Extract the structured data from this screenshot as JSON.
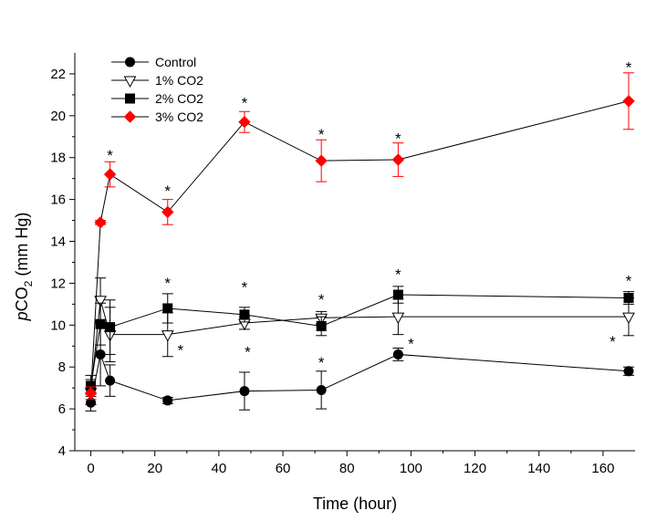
{
  "chart_data": {
    "type": "line",
    "xlabel": "Time (hour)",
    "ylabel": "pCO2 (mm Hg)",
    "ylabel_parts": {
      "italic": "p",
      "main": "CO",
      "sub": "2",
      "rest": " (mm Hg)"
    },
    "xlim": [
      -5,
      170
    ],
    "ylim": [
      4,
      23
    ],
    "xticks": [
      0,
      20,
      40,
      60,
      80,
      100,
      120,
      140,
      160
    ],
    "yticks": [
      4,
      6,
      8,
      10,
      12,
      14,
      16,
      18,
      20,
      22
    ],
    "grid": false,
    "legend_position": "top-left",
    "significance_marker": "*",
    "series": [
      {
        "name": "Control",
        "marker": "circle-filled",
        "color": "#000000",
        "x": [
          0,
          3,
          6,
          24,
          48,
          72,
          96,
          168
        ],
        "y": [
          6.3,
          8.6,
          7.35,
          6.4,
          6.85,
          6.9,
          8.6,
          7.8
        ],
        "err": [
          0.4,
          1.5,
          0.75,
          0.15,
          0.9,
          0.9,
          0.3,
          0.2
        ],
        "sig": [
          null,
          null,
          null,
          null,
          [
            49,
            8.9
          ],
          [
            72,
            8.4
          ],
          [
            100,
            9.3
          ],
          null
        ]
      },
      {
        "name": "1% CO2",
        "marker": "triangle-down-open",
        "color": "#000000",
        "x": [
          0,
          3,
          6,
          24,
          48,
          72,
          96,
          168
        ],
        "y": [
          6.8,
          11.2,
          9.55,
          9.55,
          10.1,
          10.35,
          10.4,
          10.4
        ],
        "err": [
          0.6,
          1.05,
          1.3,
          1.05,
          0.3,
          0.3,
          0.85,
          0.9
        ],
        "sig": [
          null,
          null,
          null,
          [
            28,
            9.0
          ],
          null,
          null,
          null,
          [
            163,
            9.4
          ]
        ]
      },
      {
        "name": "2% CO2",
        "marker": "square-filled",
        "color": "#000000",
        "x": [
          0,
          3,
          6,
          24,
          48,
          72,
          96,
          168
        ],
        "y": [
          7.1,
          10.05,
          9.9,
          10.8,
          10.5,
          9.95,
          11.45,
          11.3
        ],
        "err": [
          0.5,
          1.0,
          1.3,
          0.7,
          0.35,
          0.45,
          0.4,
          0.3
        ],
        "sig": [
          null,
          null,
          null,
          [
            24,
            12.2
          ],
          [
            48,
            12.0
          ],
          [
            72,
            11.4
          ],
          [
            96,
            12.6
          ],
          [
            168,
            12.3
          ]
        ]
      },
      {
        "name": "3% CO2",
        "marker": "diamond-filled",
        "color": "#ff0000",
        "x": [
          0,
          3,
          6,
          24,
          48,
          72,
          96,
          168
        ],
        "y": [
          6.75,
          14.9,
          17.2,
          15.4,
          19.7,
          17.85,
          17.9,
          20.7
        ],
        "err": [
          0.3,
          0.1,
          0.6,
          0.6,
          0.5,
          1.0,
          0.8,
          1.35
        ],
        "sig": [
          null,
          null,
          [
            6,
            18.3
          ],
          [
            24,
            16.6
          ],
          [
            48,
            20.8
          ],
          [
            72,
            19.3
          ],
          [
            96,
            19.1
          ],
          [
            168,
            22.5
          ]
        ]
      }
    ]
  }
}
